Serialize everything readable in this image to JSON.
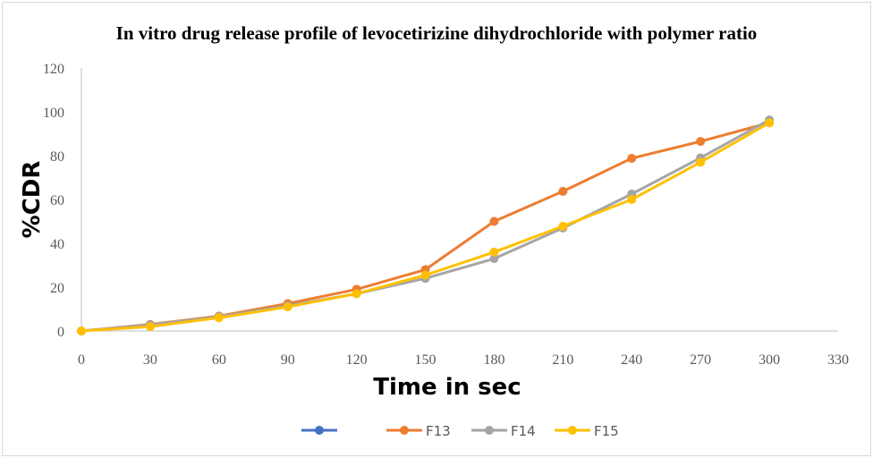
{
  "chart_data": {
    "type": "line",
    "title": "In vitro drug release profile of levocetirizine dihydrochloride with polymer ratio",
    "xlabel": "Time in sec",
    "ylabel": "%CDR",
    "x": [
      0,
      30,
      60,
      90,
      120,
      150,
      180,
      210,
      240,
      270,
      300
    ],
    "xlim": [
      0,
      330
    ],
    "ylim": [
      0,
      120
    ],
    "xticks": [
      "0",
      "30",
      "60",
      "90",
      "120",
      "150",
      "180",
      "210",
      "240",
      "270",
      "300",
      "330"
    ],
    "yticks": [
      "0",
      "20",
      "40",
      "60",
      "80",
      "100",
      "120"
    ],
    "grid": false,
    "legend_position": "bottom",
    "series": [
      {
        "name": "",
        "color": "#4472c4",
        "values": []
      },
      {
        "name": "F13",
        "color": "#ed7d31",
        "values": [
          0,
          3,
          6.8,
          12.5,
          19,
          28,
          50,
          63.7,
          78.8,
          86.5,
          95
        ]
      },
      {
        "name": "F14",
        "color": "#a5a5a5",
        "values": [
          0,
          2.8,
          6.5,
          11.5,
          17,
          24,
          33,
          47,
          62.5,
          79,
          96.3
        ]
      },
      {
        "name": "F15",
        "color": "#ffc000",
        "values": [
          0,
          2,
          6,
          11,
          17,
          25.5,
          36,
          47.8,
          60,
          77,
          95
        ]
      }
    ]
  }
}
